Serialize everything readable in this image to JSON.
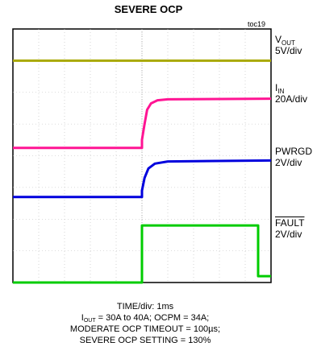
{
  "chart_data": {
    "type": "line",
    "title": "SEVERE OCP",
    "figure_id": "toc19",
    "x_axis": {
      "label": "TIME/div: 1ms",
      "divisions": 10
    },
    "y_axis": {
      "divisions": 8
    },
    "series": [
      {
        "name_main": "V",
        "name_sub": "OUT",
        "scale": "5V/div",
        "color": "#a8a800",
        "trace": [
          [
            0,
            7.0
          ],
          [
            10,
            7.0
          ]
        ]
      },
      {
        "name_main": "I",
        "name_sub": "IN",
        "scale": "20A/div",
        "color": "#ff1493",
        "trace": [
          [
            0,
            4.25
          ],
          [
            5.0,
            4.25
          ],
          [
            5.0,
            4.5
          ],
          [
            5.1,
            5.0
          ],
          [
            5.2,
            5.45
          ],
          [
            5.35,
            5.65
          ],
          [
            5.6,
            5.75
          ],
          [
            6.0,
            5.78
          ],
          [
            10,
            5.8
          ]
        ]
      },
      {
        "name_main": "PWRGD",
        "name_sub": "",
        "scale": "2V/div",
        "color": "#0000dd",
        "trace": [
          [
            0,
            2.7
          ],
          [
            5.0,
            2.7
          ],
          [
            5.0,
            2.9
          ],
          [
            5.1,
            3.3
          ],
          [
            5.25,
            3.6
          ],
          [
            5.5,
            3.75
          ],
          [
            6.0,
            3.82
          ],
          [
            10,
            3.85
          ]
        ]
      },
      {
        "name_main": "FAULT",
        "name_sub": "",
        "scale": "2V/div",
        "color": "#00cc00",
        "trace": [
          [
            0,
            0.0
          ],
          [
            5.0,
            0.0
          ],
          [
            5.0,
            1.8
          ],
          [
            9.5,
            1.8
          ],
          [
            9.5,
            0.2
          ],
          [
            10,
            0.2
          ]
        ]
      }
    ],
    "caption": {
      "line1": "TIME/div: 1ms",
      "line2_pre": "I",
      "line2_sub": "OUT",
      "line2_post": " = 30A  to 40A; OCPM = 34A;",
      "line3": "MODERATE  OCP TIMEOUT = 100µs;",
      "line4": "SEVERE OCP SETTING = 130%"
    }
  }
}
